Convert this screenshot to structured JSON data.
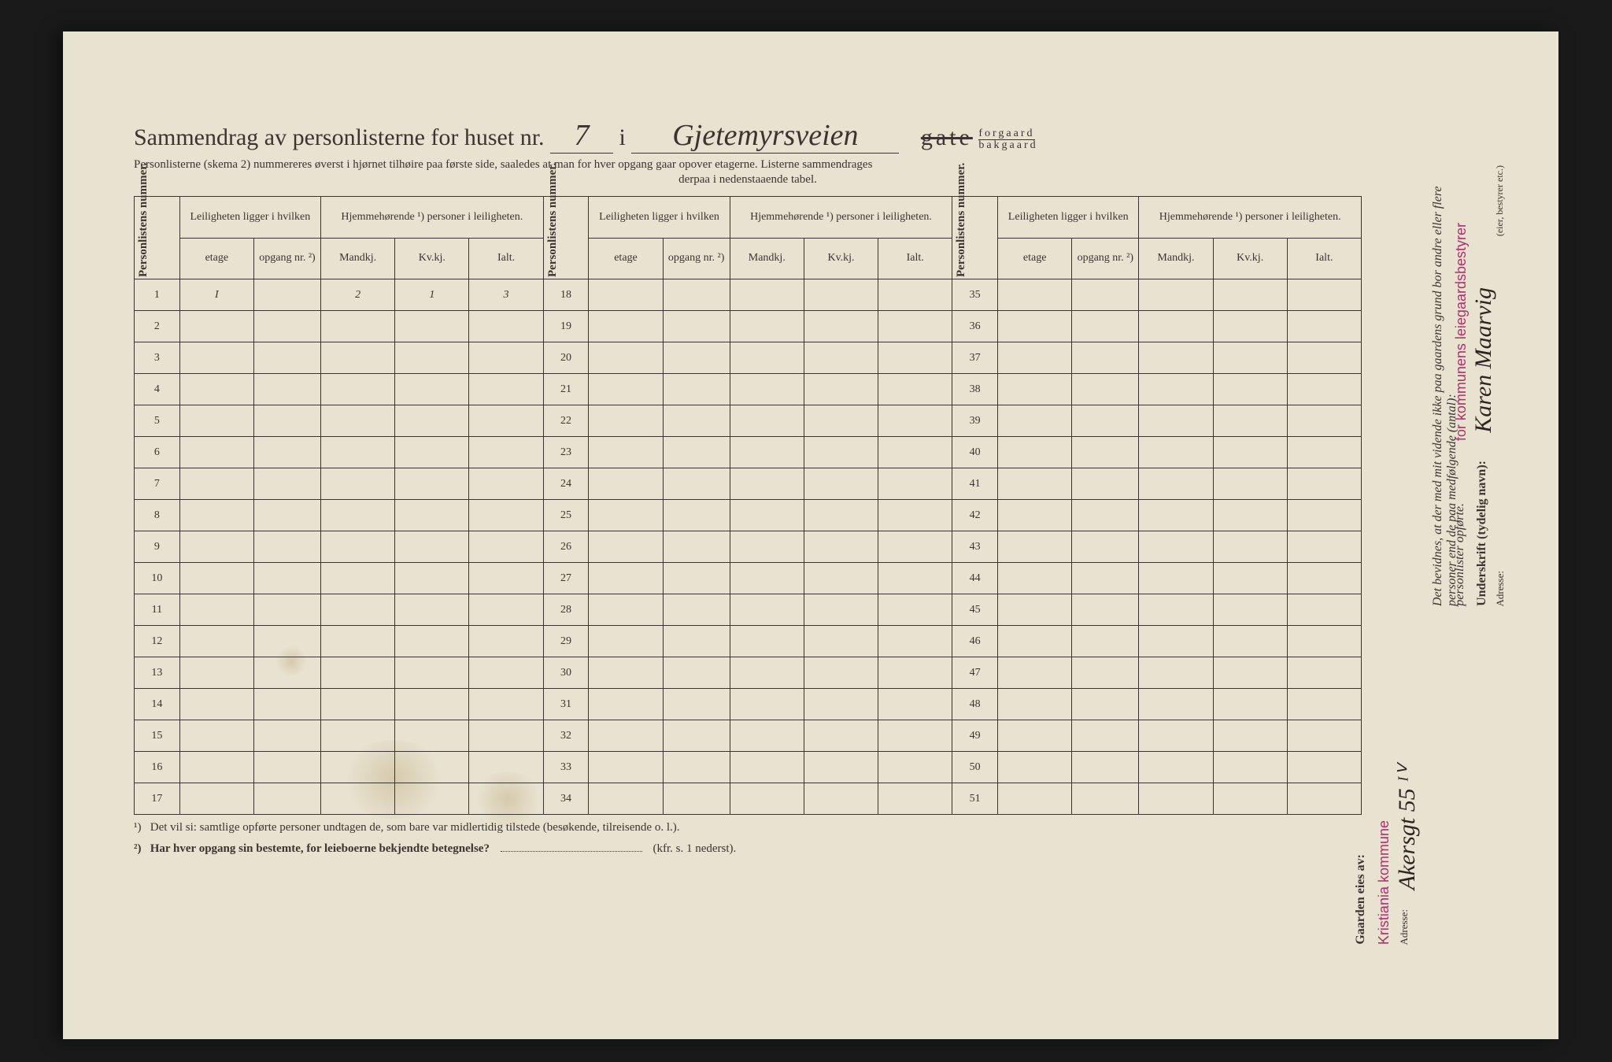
{
  "title": {
    "prefix": "Sammendrag av personlisterne for huset nr.",
    "house_nr": "7",
    "mid": "i",
    "street_hw": "Gjetemyrsveien",
    "gate_struck": "gate",
    "forgaard": "forgaard",
    "bakgaard": "bakgaard"
  },
  "subtitle1": "Personlisterne (skema 2) nummereres øverst i hjørnet tilhøire paa første side, saaledes at man for hver opgang gaar opover etagerne.  Listerne sammendrages",
  "subtitle2": "derpaa i nedenstaaende tabel.",
  "headers": {
    "personlistens_nummer": "Personlistens nummer.",
    "leiligheten": "Leiligheten ligger i hvilken",
    "hjemmehorende": "Hjemmehørende ¹) personer i leiligheten.",
    "etage": "etage",
    "opgang": "opgang nr. ²)",
    "mandkj": "Mandkj.",
    "kvkj": "Kv.kj.",
    "ialt": "Ialt."
  },
  "row_numbers": {
    "col1": [
      "1",
      "2",
      "3",
      "4",
      "5",
      "6",
      "7",
      "8",
      "9",
      "10",
      "11",
      "12",
      "13",
      "14",
      "15",
      "16",
      "17"
    ],
    "col2": [
      "18",
      "19",
      "20",
      "21",
      "22",
      "23",
      "24",
      "25",
      "26",
      "27",
      "28",
      "29",
      "30",
      "31",
      "32",
      "33",
      "34"
    ],
    "col3": [
      "35",
      "36",
      "37",
      "38",
      "39",
      "40",
      "41",
      "42",
      "43",
      "44",
      "45",
      "46",
      "47",
      "48",
      "49",
      "50",
      "51"
    ]
  },
  "row1_data": {
    "etage": "I",
    "mandkj": "2",
    "kvkj": "1",
    "ialt": "3"
  },
  "footnotes": {
    "f1_sup": "¹)",
    "f1": "Det vil si: samtlige opførte personer undtagen de, som bare var midlertidig tilstede (besøkende, tilreisende o. l.).",
    "f2_sup": "²)",
    "f2": "Har hver opgang sin bestemte, for leieboerne bekjendte betegnelse?",
    "f2_ref": "(kfr. s. 1 nederst)."
  },
  "right": {
    "gaarden": "Gaarden eies av:",
    "owner_stamp": "Kristiania kommune",
    "adresse_label": "Adresse:",
    "adresse_hw": "Akersgt 55 ᴵⱽ",
    "bevidnes": "Det bevidnes, at der med mit vidende ikke paa gaardens grund bor andre eller flere personer end de paa medfølgende (antal):",
    "personlister": "personlister opførte.",
    "for_kommunens": "for kommunens leiegaardsbestyrer",
    "underskrift": "Underskrift (tydelig navn):",
    "signature_hw": "Karen Maarvig",
    "eier": "(eier, bestyrer etc.)",
    "adresse2": "Adresse:"
  }
}
